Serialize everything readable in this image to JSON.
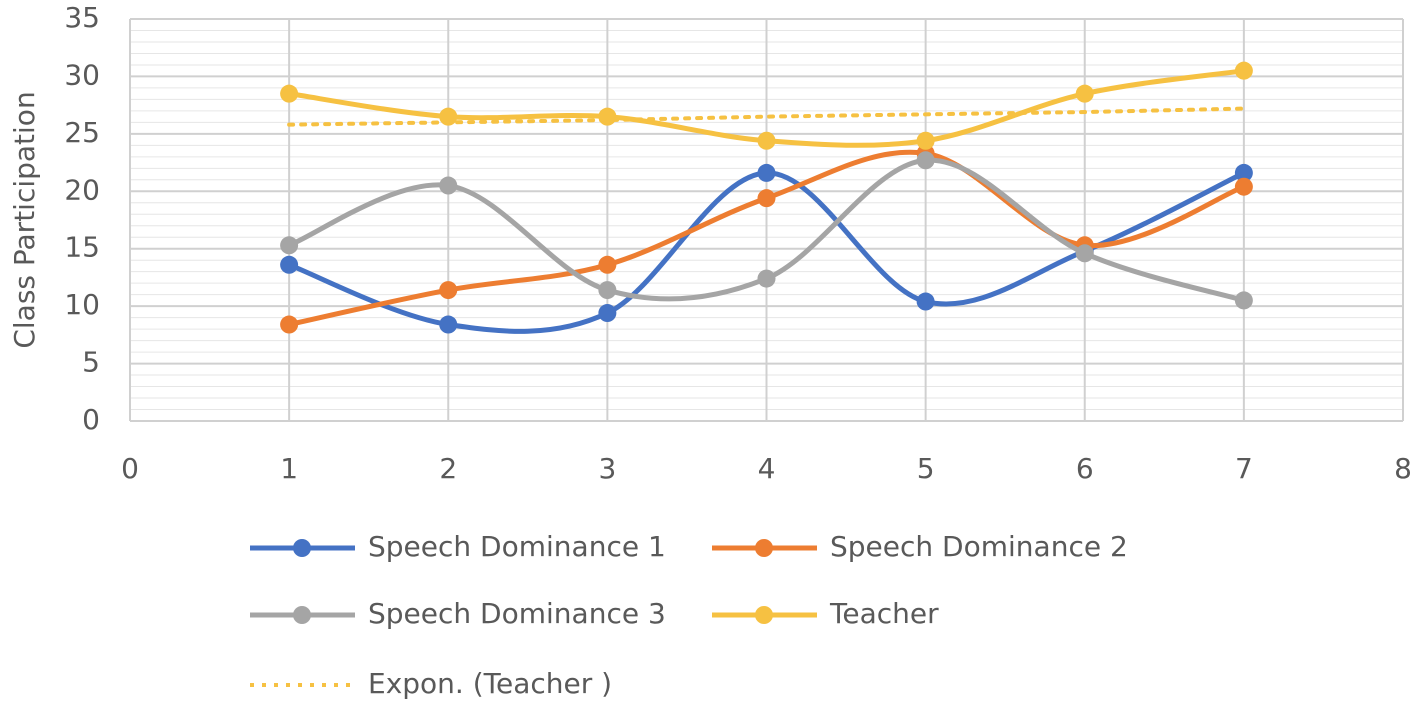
{
  "chart_data": {
    "type": "scatter_smooth",
    "y_label": "Class Participation",
    "x": [
      1,
      2,
      3,
      4,
      5,
      6,
      7
    ],
    "xlim": [
      0,
      8
    ],
    "xticks": [
      0,
      1,
      2,
      3,
      4,
      5,
      6,
      7,
      8
    ],
    "ylim": [
      0,
      35
    ],
    "yticks": [
      0,
      5,
      10,
      15,
      20,
      25,
      30,
      35
    ],
    "grid": true,
    "minor_grid": true,
    "legend": "bottom",
    "series": [
      {
        "name": "Speech Dominance 1",
        "color": "#4472c4",
        "values": [
          13.6,
          8.4,
          9.4,
          21.6,
          10.4,
          14.8,
          21.6
        ]
      },
      {
        "name": "Speech Dominance 2",
        "color": "#ed7d31",
        "values": [
          8.4,
          11.4,
          13.6,
          19.4,
          23.3,
          15.3,
          20.4
        ]
      },
      {
        "name": "Speech Dominance 3",
        "color": "#a5a5a5",
        "values": [
          15.3,
          20.5,
          11.4,
          12.4,
          22.7,
          14.6,
          10.5
        ]
      },
      {
        "name": "Teacher",
        "color": "#f6c142",
        "values": [
          28.5,
          26.5,
          26.5,
          24.4,
          24.4,
          28.5,
          30.5
        ]
      },
      {
        "name": "Expon. (Teacher )",
        "color": "#f6c142",
        "line_style": "dotted",
        "markers": false,
        "values": [
          25.8,
          26.0,
          26.2,
          26.5,
          26.7,
          26.9,
          27.2
        ]
      }
    ]
  }
}
